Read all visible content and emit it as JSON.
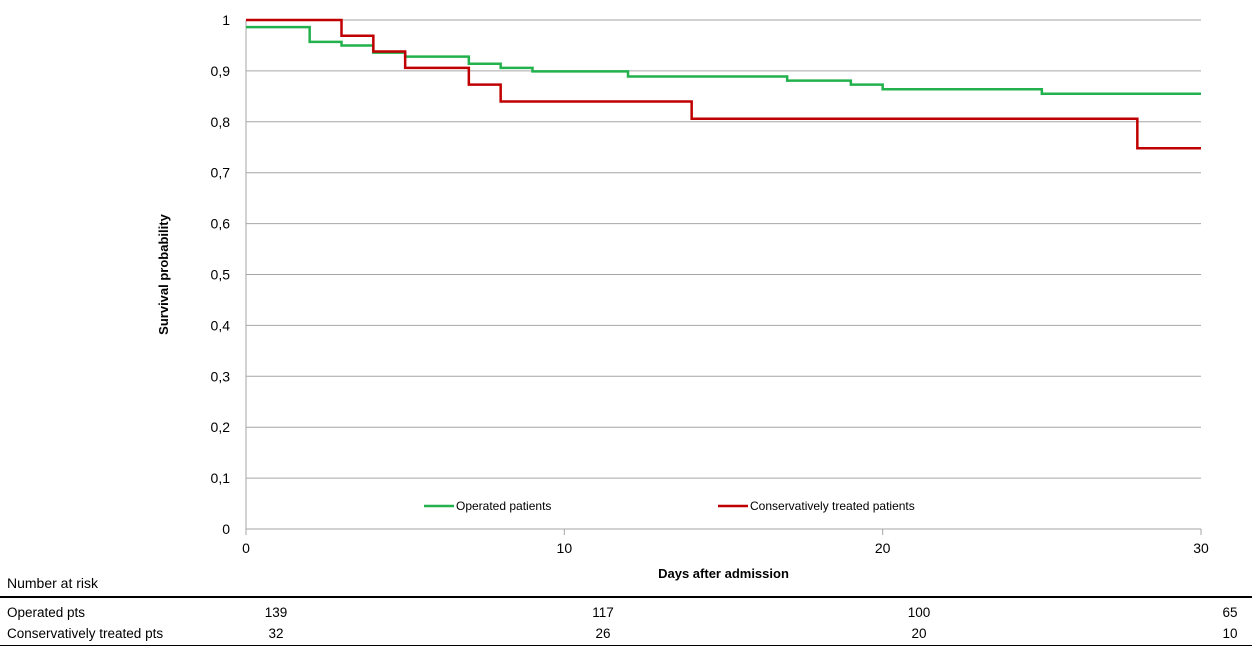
{
  "chart_data": {
    "type": "line",
    "step": true,
    "xlabel": "Days after admission",
    "ylabel": "Survival probability",
    "xlim": [
      0,
      30
    ],
    "ylim": [
      0,
      1
    ],
    "x_ticks": [
      0,
      10,
      20,
      30
    ],
    "y_ticks": [
      "0",
      "0,1",
      "0,2",
      "0,3",
      "0,4",
      "0,5",
      "0,6",
      "0,7",
      "0,8",
      "0,9",
      "1"
    ],
    "grid": true,
    "legend_position": "bottom",
    "series": [
      {
        "name": "Operated patients",
        "color": "#22b14c",
        "x": [
          0,
          2,
          3,
          4,
          5,
          7,
          8,
          9,
          12,
          17,
          19,
          20,
          25,
          30
        ],
        "y": [
          0.986,
          0.957,
          0.95,
          0.936,
          0.928,
          0.914,
          0.906,
          0.899,
          0.889,
          0.881,
          0.873,
          0.864,
          0.855,
          0.855
        ]
      },
      {
        "name": "Conservatively treated patients",
        "color": "#c00000",
        "x": [
          0,
          3,
          4,
          5,
          7,
          8,
          14,
          28,
          30
        ],
        "y": [
          1.0,
          0.969,
          0.938,
          0.906,
          0.873,
          0.84,
          0.806,
          0.748,
          0.748
        ]
      }
    ]
  },
  "risk_table": {
    "title": "Number at risk",
    "rows": [
      {
        "label": "Operated pts",
        "values": [
          "139",
          "117",
          "100",
          "65"
        ]
      },
      {
        "label": "Conservatively treated pts",
        "values": [
          "32",
          "26",
          "20",
          "10"
        ]
      }
    ]
  }
}
